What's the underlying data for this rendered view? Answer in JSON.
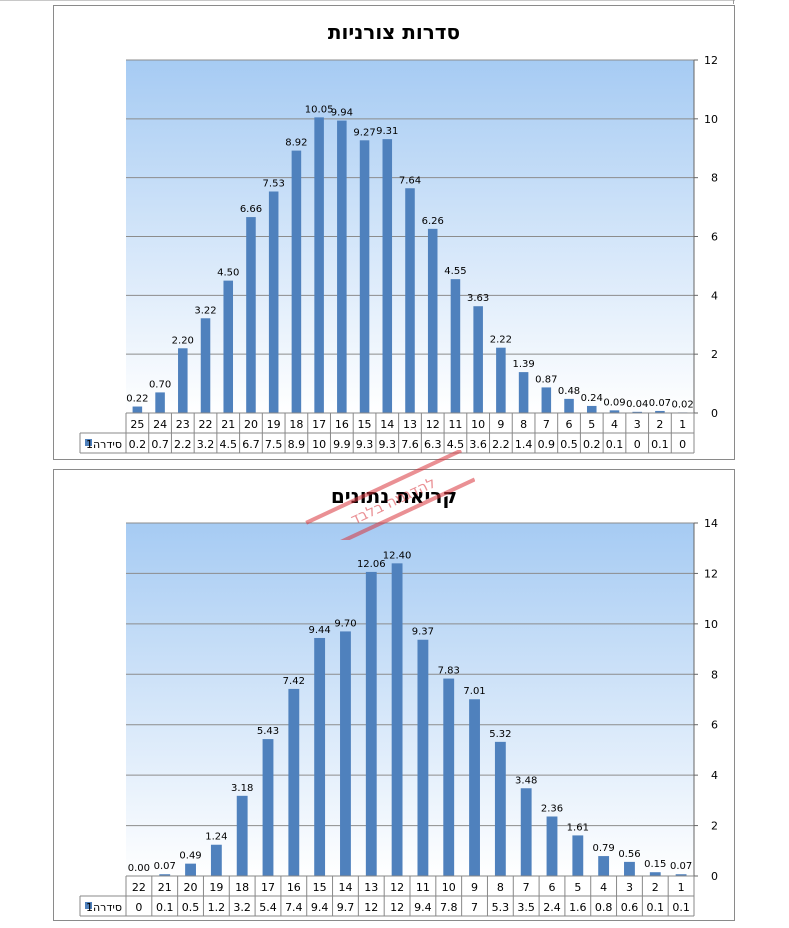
{
  "chart_data": [
    {
      "type": "bar",
      "title": "סדרות צורניות",
      "series_label": "סידרה1",
      "categories": [
        "1",
        "2",
        "3",
        "4",
        "5",
        "6",
        "7",
        "8",
        "9",
        "10",
        "11",
        "12",
        "13",
        "14",
        "15",
        "16",
        "17",
        "18",
        "19",
        "20",
        "21",
        "22",
        "23",
        "24",
        "25"
      ],
      "values": [
        0.02,
        0.07,
        0.04,
        0.09,
        0.24,
        0.48,
        0.87,
        1.39,
        2.22,
        3.63,
        4.55,
        6.26,
        7.64,
        9.31,
        9.27,
        9.94,
        10.05,
        8.92,
        7.53,
        6.66,
        4.5,
        3.22,
        2.2,
        0.7,
        0.22
      ],
      "data_labels": [
        "0.02",
        "0.07",
        "0.04",
        "0.09",
        "0.24",
        "0.48",
        "0.87",
        "1.39",
        "2.22",
        "3.63",
        "4.55",
        "6.26",
        "7.64",
        "9.31",
        "9.27",
        "9.94",
        "10.05",
        "8.92",
        "7.53",
        "6.66",
        "4.50",
        "3.22",
        "2.20",
        "0.70",
        "0.22"
      ],
      "table_values": [
        "0",
        "0.1",
        "0",
        "0.1",
        "0.2",
        "0.5",
        "0.9",
        "1.4",
        "2.2",
        "3.6",
        "4.5",
        "6.3",
        "7.6",
        "9.3",
        "9.3",
        "9.9",
        "10",
        "8.9",
        "7.5",
        "6.7",
        "4.5",
        "3.2",
        "2.2",
        "0.7",
        "0.2"
      ],
      "ylim": [
        0,
        12
      ],
      "yticks": [
        "0",
        "2",
        "4",
        "6",
        "8",
        "10",
        "12"
      ],
      "x_direction": "right-to-left",
      "y_axis_side": "right",
      "grid": true,
      "bar_color": "#4f81bd"
    },
    {
      "type": "bar",
      "title": "קריאת נתונים",
      "series_label": "סידרה1",
      "categories": [
        "1",
        "2",
        "3",
        "4",
        "5",
        "6",
        "7",
        "8",
        "9",
        "10",
        "11",
        "12",
        "13",
        "14",
        "15",
        "16",
        "17",
        "18",
        "19",
        "20",
        "21",
        "22"
      ],
      "values": [
        0.07,
        0.15,
        0.56,
        0.79,
        1.61,
        2.36,
        3.48,
        5.32,
        7.01,
        7.83,
        9.37,
        12.4,
        12.06,
        9.7,
        9.44,
        7.42,
        5.43,
        3.18,
        1.24,
        0.49,
        0.07,
        0.0
      ],
      "data_labels": [
        "0.07",
        "0.15",
        "0.56",
        "0.79",
        "1.61",
        "2.36",
        "3.48",
        "5.32",
        "7.01",
        "7.83",
        "9.37",
        "12.40",
        "12.06",
        "9.70",
        "9.44",
        "7.42",
        "5.43",
        "3.18",
        "1.24",
        "0.49",
        "0.07",
        "0.00"
      ],
      "table_values": [
        "0.1",
        "0.1",
        "0.6",
        "0.8",
        "1.6",
        "2.4",
        "3.5",
        "5.3",
        "7",
        "7.8",
        "9.4",
        "12",
        "12",
        "9.7",
        "9.4",
        "7.4",
        "5.4",
        "3.2",
        "1.2",
        "0.5",
        "0.1",
        "0"
      ],
      "ylim": [
        0,
        14
      ],
      "yticks": [
        "0",
        "2",
        "4",
        "6",
        "8",
        "10",
        "12",
        "14"
      ],
      "x_direction": "right-to-left",
      "y_axis_side": "right",
      "grid": true,
      "bar_color": "#4f81bd"
    }
  ],
  "watermark": {
    "text": "להדגמה בלבד"
  },
  "colors": {
    "plot_top": "#a6cbf3",
    "plot_bottom": "#ffffff",
    "grid": "#8c8c8c",
    "stamp": "#d9363e"
  }
}
